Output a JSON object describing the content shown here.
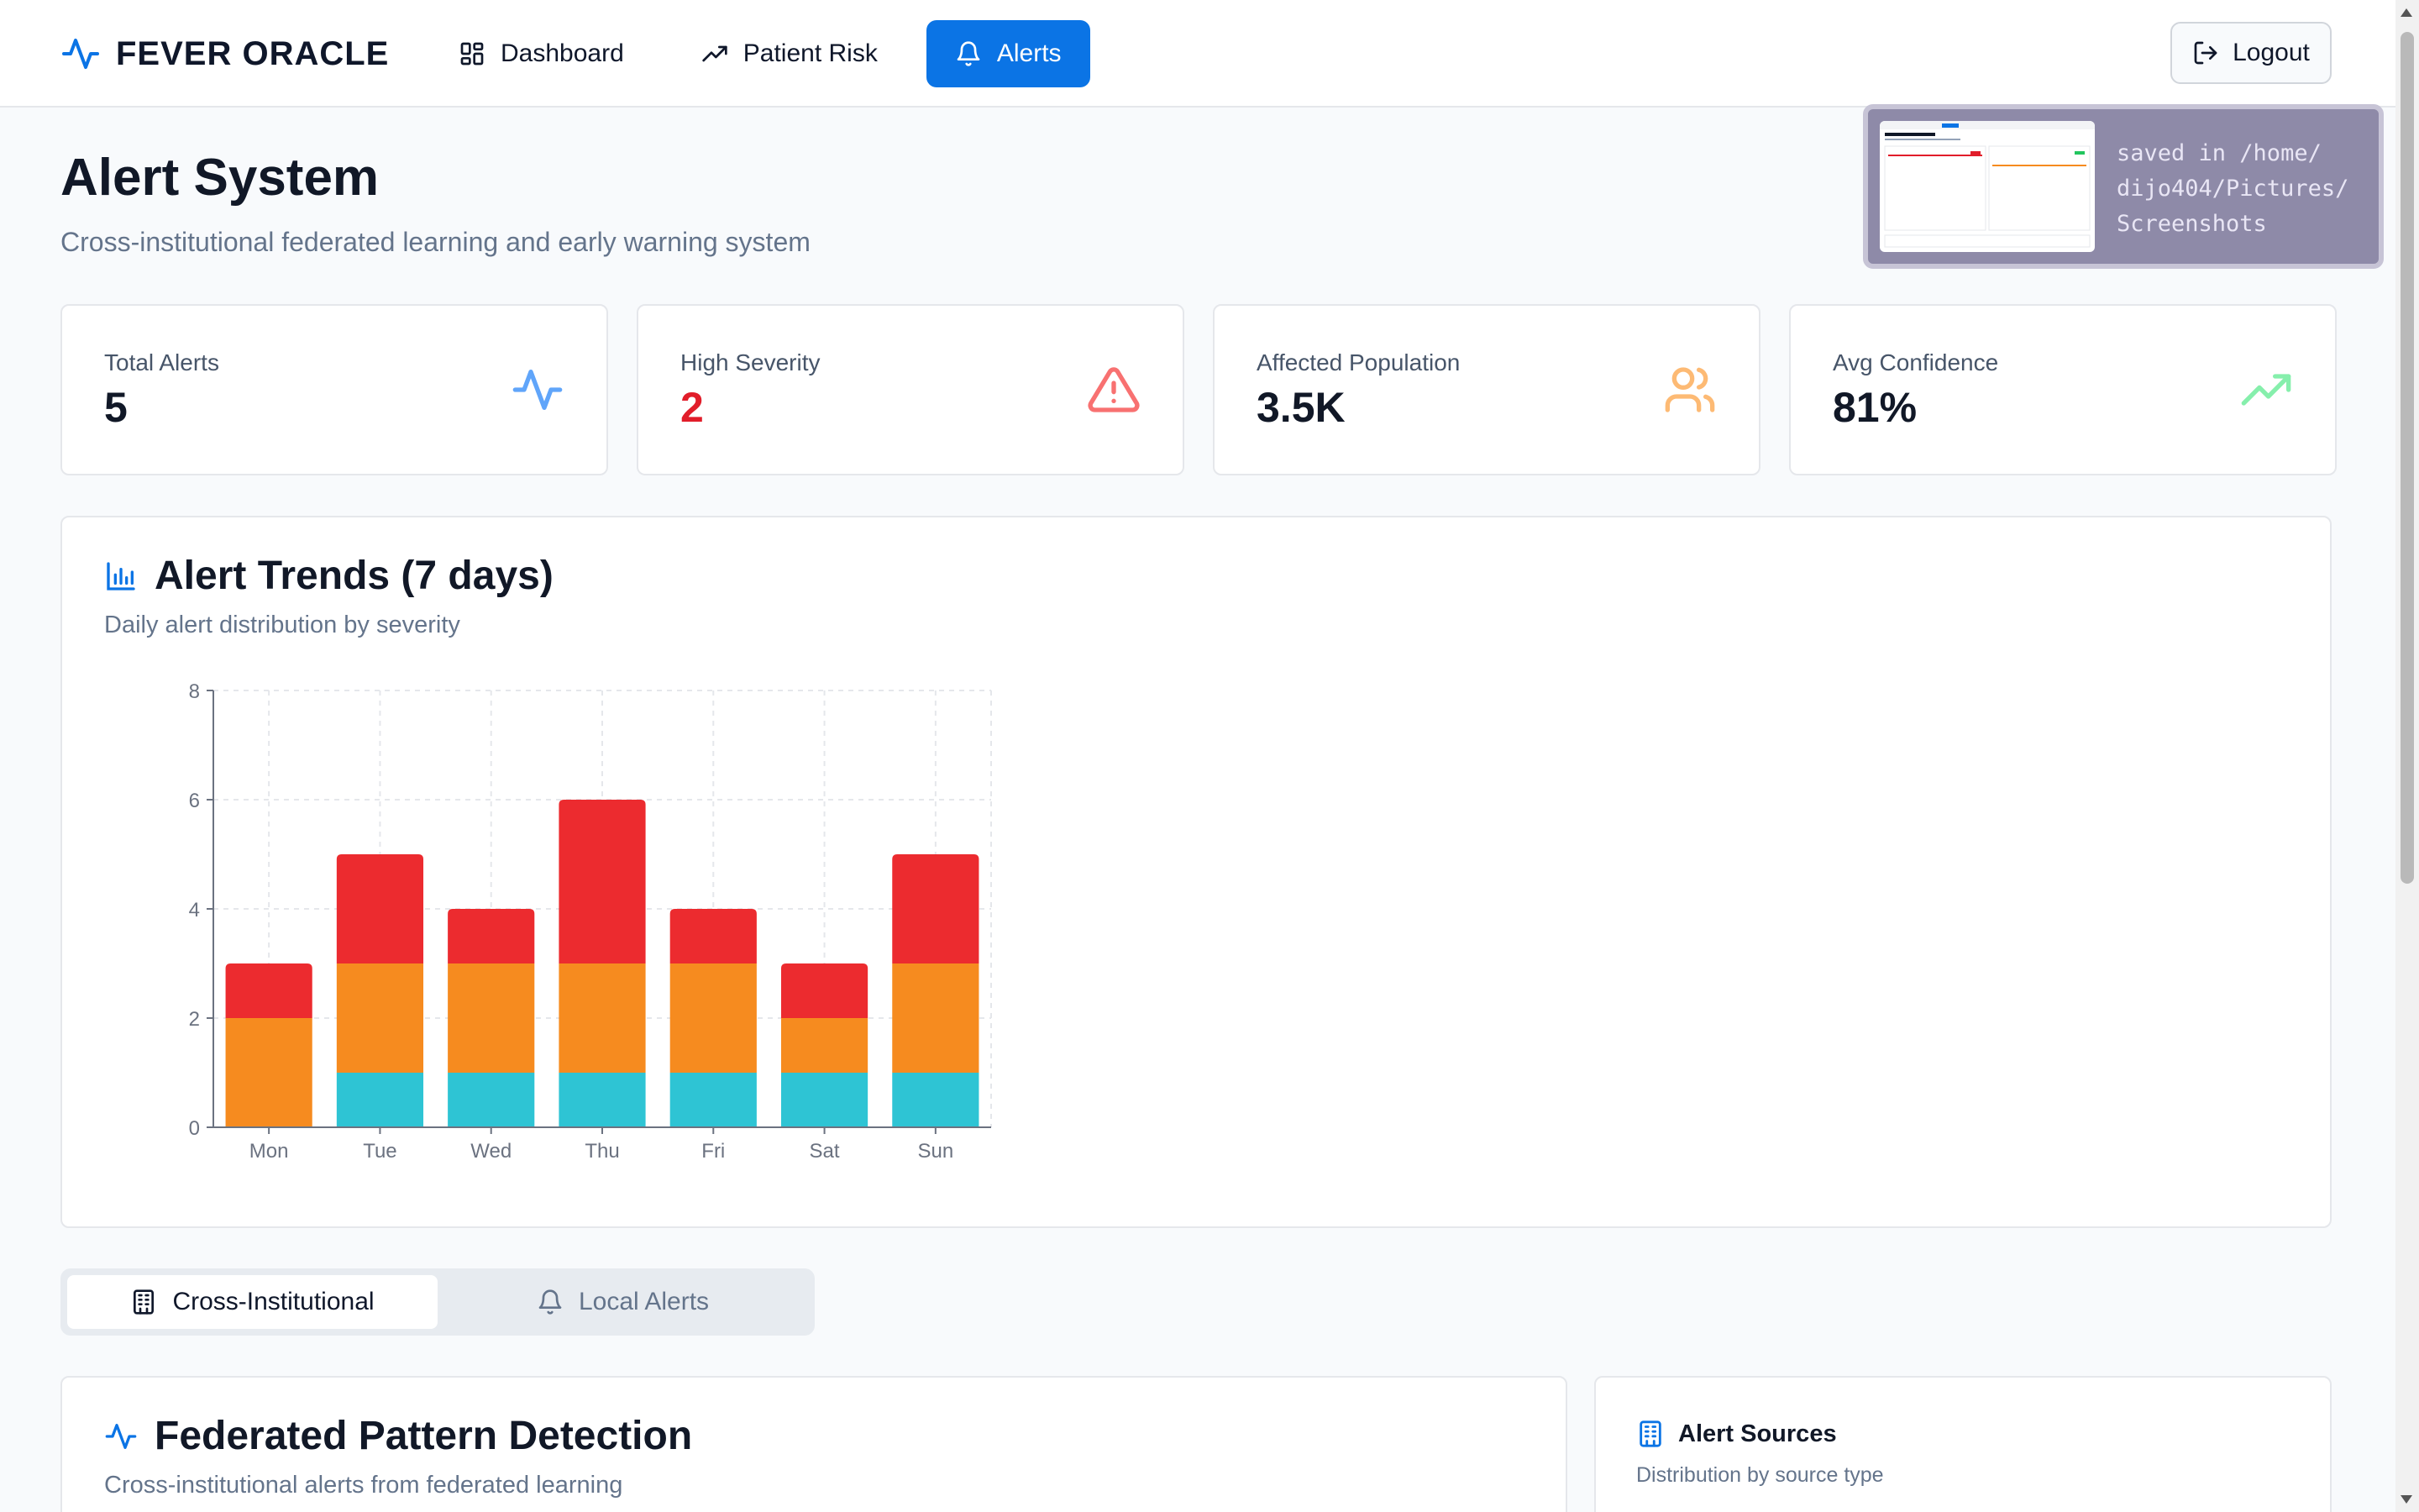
{
  "header": {
    "brand": "FEVER ORACLE",
    "nav": [
      {
        "label": "Dashboard",
        "icon": "grid-icon"
      },
      {
        "label": "Patient Risk",
        "icon": "trend-up-icon"
      },
      {
        "label": "Alerts",
        "icon": "bell-icon",
        "active": true
      }
    ],
    "logout_label": "Logout"
  },
  "page": {
    "title": "Alert System",
    "subtitle": "Cross-institutional federated learning and early warning system"
  },
  "stats": [
    {
      "label": "Total Alerts",
      "value": "5",
      "icon": "activity-icon",
      "color": "#60a5fa"
    },
    {
      "label": "High Severity",
      "value": "2",
      "icon": "alert-triangle-icon",
      "color": "#f87171"
    },
    {
      "label": "Affected Population",
      "value": "3.5K",
      "icon": "users-icon",
      "color": "#fdba74"
    },
    {
      "label": "Avg Confidence",
      "value": "81%",
      "icon": "trend-up-icon",
      "color": "#86efac"
    }
  ],
  "trends": {
    "title": "Alert Trends (7 days)",
    "subtitle": "Daily alert distribution by severity"
  },
  "chart_data": {
    "type": "bar",
    "stacked": true,
    "categories": [
      "Mon",
      "Tue",
      "Wed",
      "Thu",
      "Fri",
      "Sat",
      "Sun"
    ],
    "series": [
      {
        "values": [
          0,
          1,
          1,
          1,
          1,
          1,
          1
        ],
        "color": "#2ec4d4"
      },
      {
        "values": [
          2,
          2,
          2,
          2,
          2,
          1,
          2
        ],
        "color": "#f68b1f"
      },
      {
        "values": [
          1,
          2,
          1,
          3,
          1,
          1,
          2
        ],
        "color": "#ec2b2f"
      }
    ],
    "ylim": [
      0,
      8
    ],
    "yticks": [
      0,
      2,
      4,
      6,
      8
    ],
    "grid": true
  },
  "tabs": [
    {
      "label": "Cross-Institutional",
      "icon": "building-icon",
      "active": true
    },
    {
      "label": "Local Alerts",
      "icon": "bell-icon",
      "active": false
    }
  ],
  "federated": {
    "title": "Federated Pattern Detection",
    "subtitle": "Cross-institutional alerts from federated learning"
  },
  "sources": {
    "title": "Alert Sources",
    "subtitle": "Distribution by source type"
  },
  "toast": {
    "lines": [
      "saved in /home/",
      "dijo404/Pictures/",
      "Screenshots"
    ]
  }
}
